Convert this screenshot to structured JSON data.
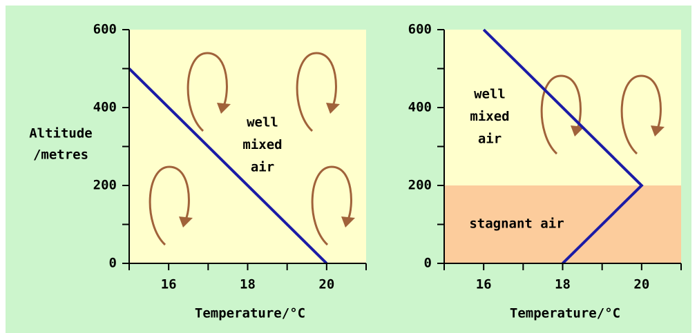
{
  "chart_data": [
    {
      "type": "line",
      "x_label": "Temperature/°C",
      "y_label": [
        "Altitude",
        "/metres"
      ],
      "xlim": [
        15,
        21
      ],
      "ylim": [
        0,
        600
      ],
      "xticks": [
        16,
        18,
        20
      ],
      "yticks": [
        0,
        200,
        400,
        600
      ],
      "x_minor_ticks": [
        15,
        17,
        19,
        21
      ],
      "y_minor_ticks": [
        100,
        300,
        500
      ],
      "plot_color": "#ffffcc",
      "series": [
        {
          "color": "#1b1ba6",
          "x": [
            15,
            20
          ],
          "values": [
            500,
            0
          ]
        }
      ],
      "annotations": [
        {
          "lines": [
            "well",
            "mixed",
            "air"
          ]
        }
      ]
    },
    {
      "type": "line",
      "x_label": "Temperature/°C",
      "xlim": [
        15,
        21
      ],
      "ylim": [
        0,
        600
      ],
      "xticks": [
        16,
        18,
        20
      ],
      "yticks": [
        0,
        200,
        400,
        600
      ],
      "x_minor_ticks": [
        15,
        17,
        19,
        21
      ],
      "y_minor_ticks": [
        100,
        300,
        500
      ],
      "plot_color": "#ffffcc",
      "bands": [
        {
          "ylim": [
            0,
            200
          ],
          "color": "#fccc9c",
          "label": "stagnant air"
        }
      ],
      "series": [
        {
          "color": "#1b1ba6",
          "x": [
            16,
            20,
            18
          ],
          "values": [
            600,
            200,
            0
          ]
        }
      ],
      "annotations": [
        {
          "lines": [
            "well",
            "mixed",
            "air"
          ]
        }
      ]
    }
  ]
}
